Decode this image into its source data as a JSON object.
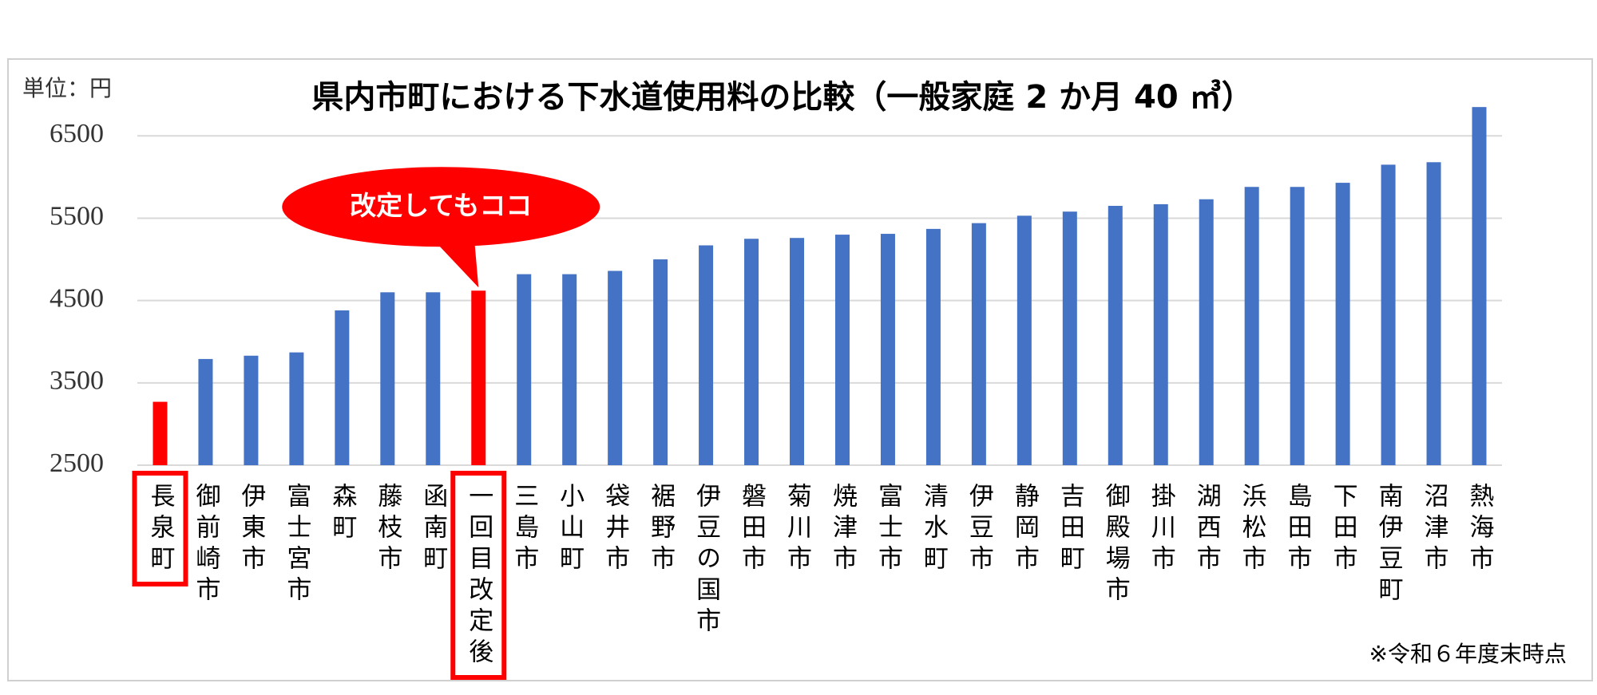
{
  "chart_data": {
    "type": "bar",
    "title": "県内市町における下水道使用料の比較（一般家庭 2 か月 40 ㎥）",
    "unit_label": "単位：円",
    "footnote": "※令和６年度末時点",
    "annotation": "改定してもココ",
    "categories": [
      "長泉町",
      "御前崎市",
      "伊東市",
      "富士宮市",
      "森町",
      "藤枝市",
      "函南町",
      "一回目改定後",
      "三島市",
      "小山町",
      "袋井市",
      "裾野市",
      "伊豆の国市",
      "磐田市",
      "菊川市",
      "焼津市",
      "富士市",
      "清水町",
      "伊豆市",
      "静岡市",
      "吉田町",
      "御殿場市",
      "掛川市",
      "湖西市",
      "浜松市",
      "島田市",
      "下田市",
      "南伊豆町",
      "沼津市",
      "熱海市"
    ],
    "values": [
      3270,
      3790,
      3830,
      3870,
      4380,
      4600,
      4600,
      4620,
      4820,
      4820,
      4860,
      5000,
      5170,
      5250,
      5260,
      5300,
      5310,
      5370,
      5440,
      5530,
      5580,
      5650,
      5670,
      5730,
      5880,
      5880,
      5930,
      6150,
      6180,
      6850
    ],
    "color": "#4472c4",
    "colors": [
      "#ff0000",
      "#4472c4",
      "#4472c4",
      "#4472c4",
      "#4472c4",
      "#4472c4",
      "#4472c4",
      "#ff0000",
      "#4472c4",
      "#4472c4",
      "#4472c4",
      "#4472c4",
      "#4472c4",
      "#4472c4",
      "#4472c4",
      "#4472c4",
      "#4472c4",
      "#4472c4",
      "#4472c4",
      "#4472c4",
      "#4472c4",
      "#4472c4",
      "#4472c4",
      "#4472c4",
      "#4472c4",
      "#4472c4",
      "#4472c4",
      "#4472c4",
      "#4472c4",
      "#4472c4"
    ],
    "ylim": [
      2500,
      6900
    ],
    "yticks": [
      2500,
      3500,
      4500,
      5500,
      6500
    ],
    "grid": true
  }
}
